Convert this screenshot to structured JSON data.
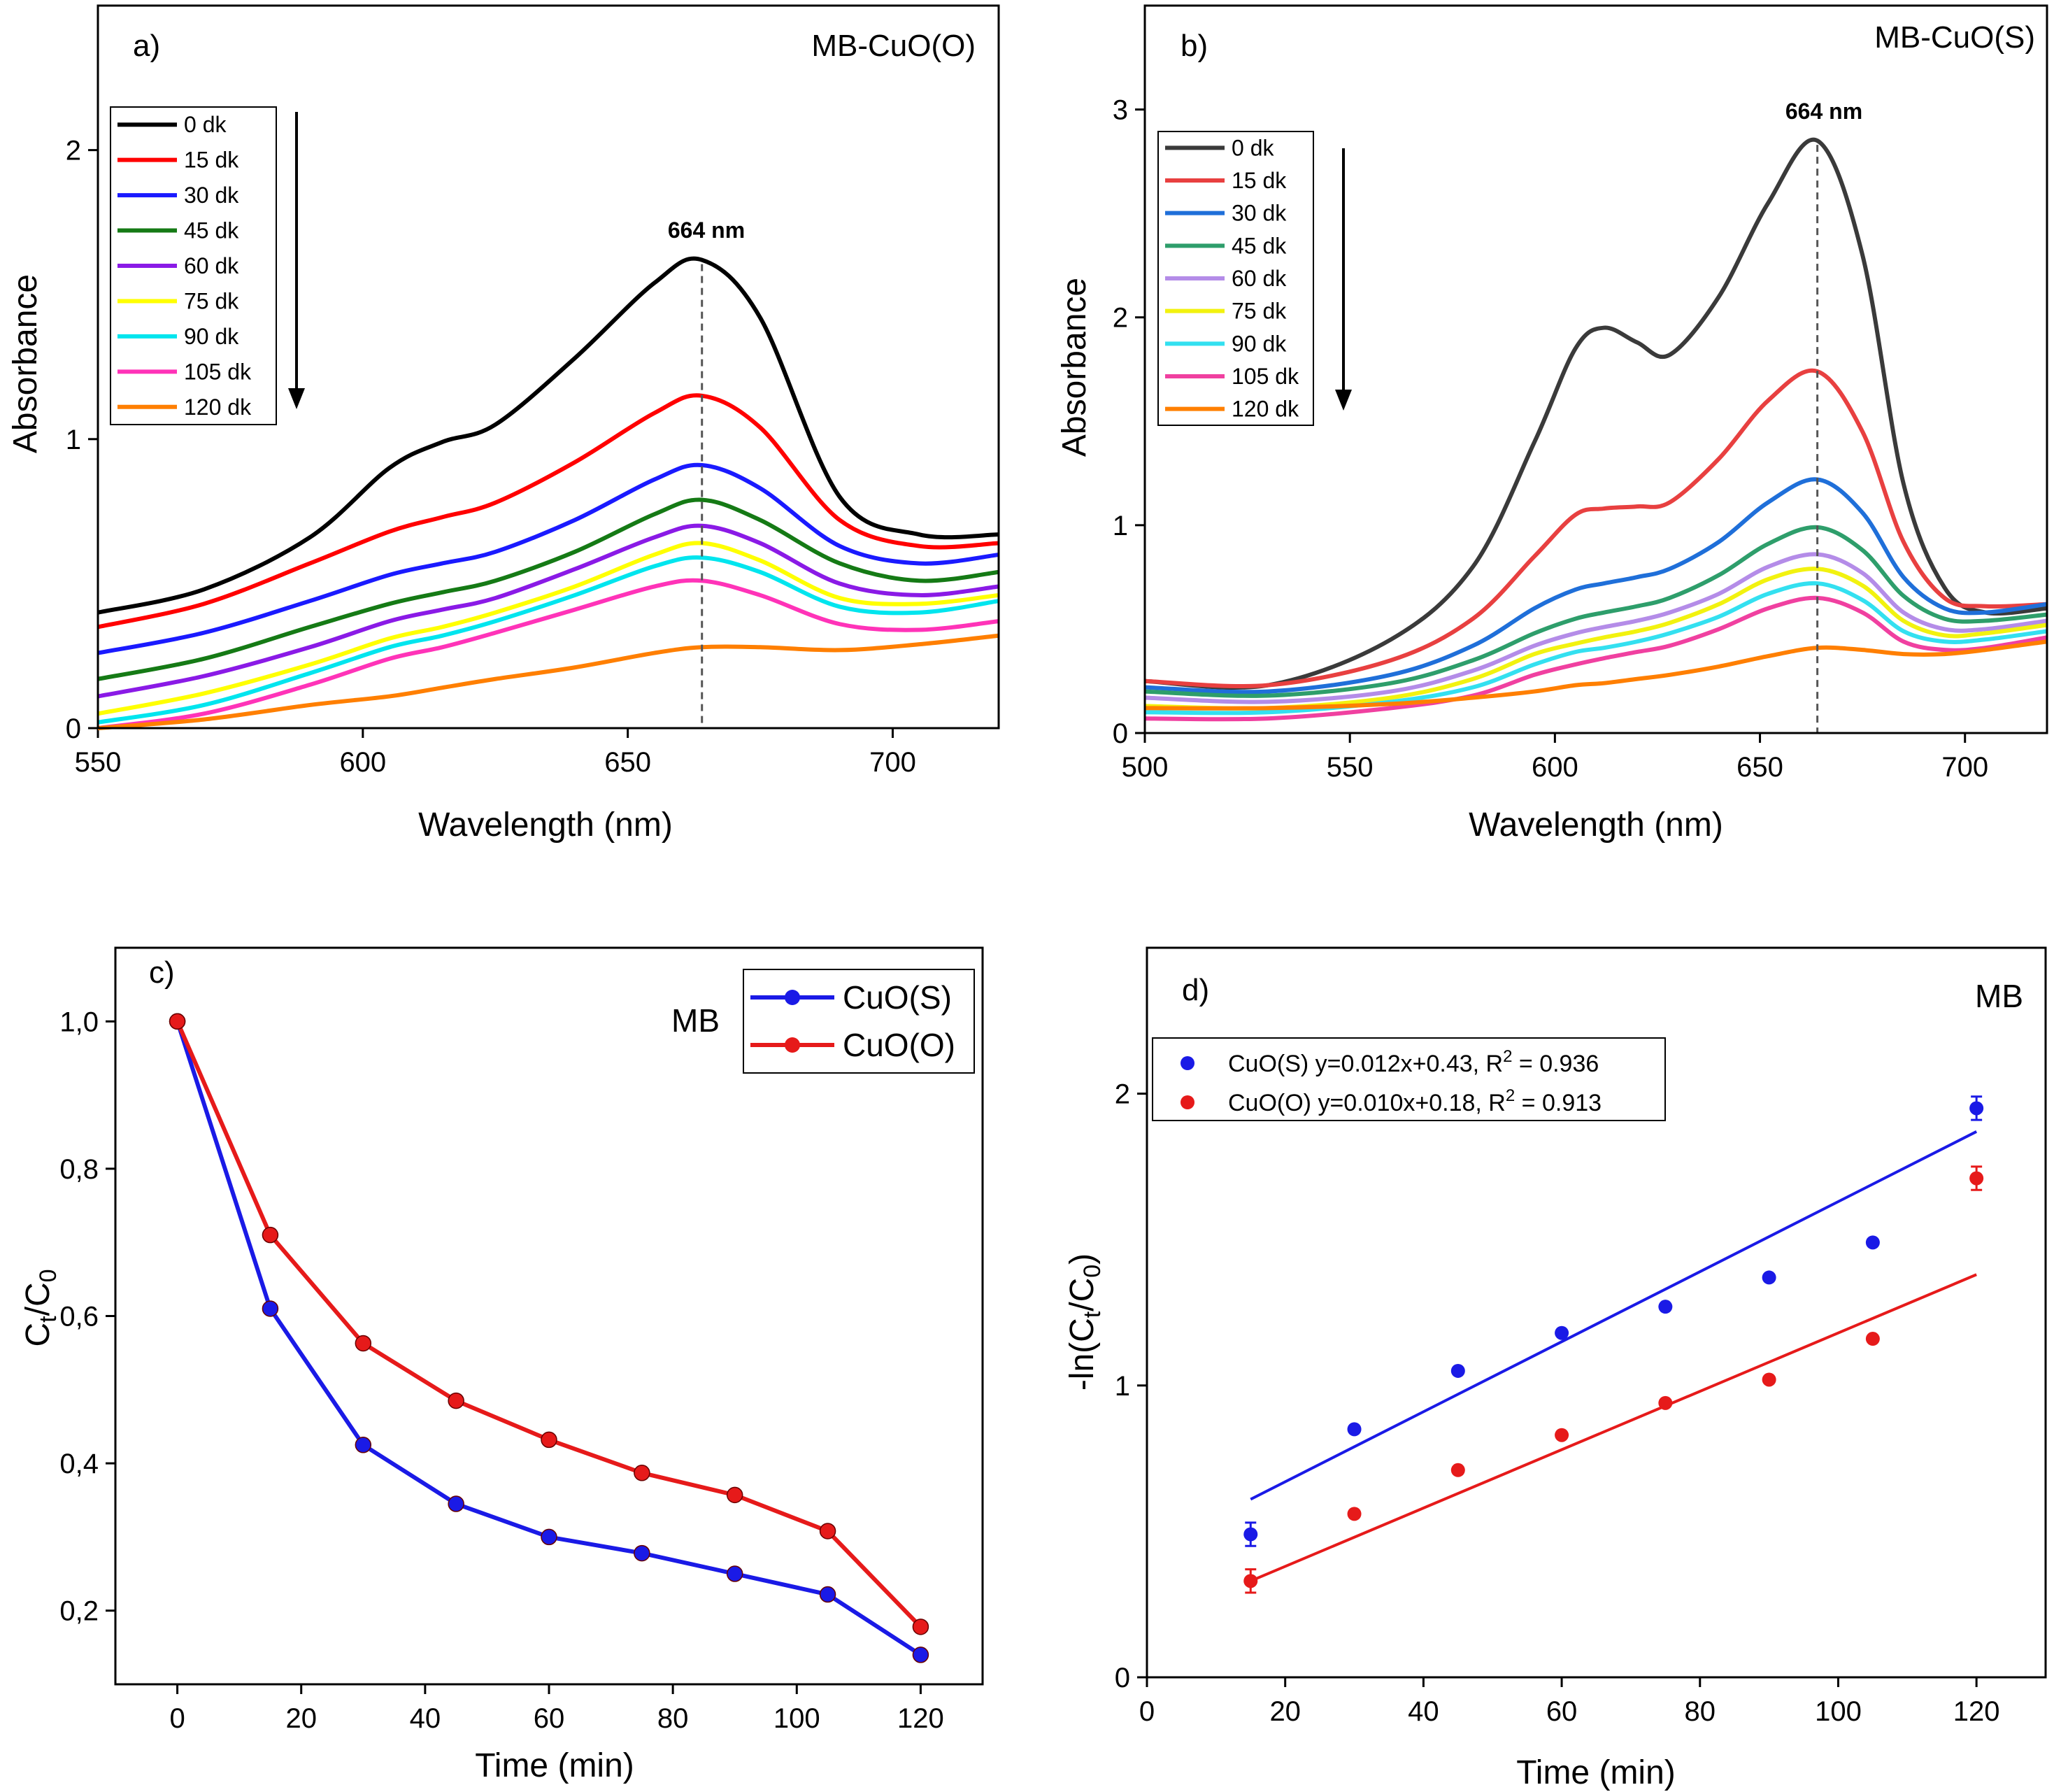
{
  "chart_data": [
    {
      "type": "line",
      "panel_label": "a)",
      "sample_label": "MB-CuO(O)",
      "xlabel": "Wavelength (nm)",
      "ylabel": "Absorbance",
      "xlim": [
        550,
        720
      ],
      "ylim": [
        0,
        2.5
      ],
      "xticks": [
        "550",
        "600",
        "650",
        "700"
      ],
      "yticks": [
        "0",
        "1",
        "2"
      ],
      "xtick_values": [
        550,
        600,
        650,
        700
      ],
      "ytick_values": [
        0,
        1,
        2
      ],
      "peak_label": "664 nm",
      "peak_x": 664,
      "legend_position": "top-left",
      "x": [
        550,
        570,
        590,
        605,
        615,
        625,
        640,
        655,
        664,
        675,
        690,
        705,
        720
      ],
      "series": [
        {
          "name": "0 dk",
          "color": "#000000",
          "values": [
            0.4,
            0.48,
            0.66,
            0.9,
            0.99,
            1.05,
            1.28,
            1.54,
            1.62,
            1.42,
            0.8,
            0.67,
            0.67
          ]
        },
        {
          "name": "15 dk",
          "color": "#ff0000",
          "values": [
            0.35,
            0.43,
            0.57,
            0.68,
            0.73,
            0.78,
            0.92,
            1.09,
            1.15,
            1.04,
            0.72,
            0.63,
            0.64
          ]
        },
        {
          "name": "30 dk",
          "color": "#1a1aff",
          "values": [
            0.26,
            0.33,
            0.44,
            0.53,
            0.57,
            0.61,
            0.72,
            0.86,
            0.91,
            0.83,
            0.63,
            0.57,
            0.6
          ]
        },
        {
          "name": "45 dk",
          "color": "#157a15",
          "values": [
            0.17,
            0.24,
            0.35,
            0.43,
            0.47,
            0.51,
            0.61,
            0.74,
            0.79,
            0.72,
            0.57,
            0.51,
            0.54
          ]
        },
        {
          "name": "60 dk",
          "color": "#8a1ae6",
          "values": [
            0.11,
            0.18,
            0.28,
            0.37,
            0.41,
            0.45,
            0.55,
            0.66,
            0.7,
            0.64,
            0.5,
            0.46,
            0.49
          ]
        },
        {
          "name": "75 dk",
          "color": "#ffff00",
          "values": [
            0.05,
            0.12,
            0.22,
            0.31,
            0.35,
            0.4,
            0.49,
            0.6,
            0.64,
            0.58,
            0.45,
            0.43,
            0.46
          ]
        },
        {
          "name": "90 dk",
          "color": "#00e5ee",
          "values": [
            0.02,
            0.08,
            0.19,
            0.28,
            0.32,
            0.37,
            0.46,
            0.56,
            0.59,
            0.54,
            0.42,
            0.4,
            0.44
          ]
        },
        {
          "name": "105 dk",
          "color": "#ff33b8",
          "values": [
            0.0,
            0.05,
            0.15,
            0.24,
            0.28,
            0.33,
            0.41,
            0.49,
            0.51,
            0.46,
            0.36,
            0.34,
            0.37
          ]
        },
        {
          "name": "120 dk",
          "color": "#ff7f00",
          "values": [
            0.0,
            0.03,
            0.08,
            0.11,
            0.14,
            0.17,
            0.21,
            0.26,
            0.28,
            0.28,
            0.27,
            0.29,
            0.32
          ]
        }
      ]
    },
    {
      "type": "line",
      "panel_label": "b)",
      "sample_label": "MB-CuO(S)",
      "xlabel": "Wavelength (nm)",
      "ylabel": "Absorbance",
      "xlim": [
        500,
        720
      ],
      "ylim": [
        0,
        3.5
      ],
      "xticks": [
        "500",
        "550",
        "600",
        "650",
        "700"
      ],
      "yticks": [
        "0",
        "1",
        "2",
        "3"
      ],
      "xtick_values": [
        500,
        550,
        600,
        650,
        700
      ],
      "ytick_values": [
        0,
        1,
        2,
        3
      ],
      "peak_label": "664 nm",
      "peak_x": 664,
      "legend_position": "top-left",
      "x": [
        500,
        530,
        560,
        580,
        595,
        605,
        612,
        620,
        628,
        640,
        652,
        664,
        675,
        685,
        695,
        705,
        720
      ],
      "series": [
        {
          "name": "0 dk",
          "color": "#3a3a3a",
          "values": [
            0.25,
            0.23,
            0.45,
            0.8,
            1.4,
            1.85,
            1.95,
            1.88,
            1.82,
            2.1,
            2.55,
            2.85,
            2.3,
            1.2,
            0.7,
            0.58,
            0.6
          ]
        },
        {
          "name": "15 dk",
          "color": "#e84040",
          "values": [
            0.25,
            0.23,
            0.35,
            0.55,
            0.85,
            1.05,
            1.08,
            1.09,
            1.11,
            1.32,
            1.6,
            1.74,
            1.45,
            0.92,
            0.65,
            0.61,
            0.62
          ]
        },
        {
          "name": "30 dk",
          "color": "#1f6fd9",
          "values": [
            0.22,
            0.2,
            0.28,
            0.42,
            0.6,
            0.69,
            0.72,
            0.75,
            0.79,
            0.92,
            1.11,
            1.22,
            1.06,
            0.75,
            0.6,
            0.58,
            0.62
          ]
        },
        {
          "name": "45 dk",
          "color": "#2e9e6b",
          "values": [
            0.2,
            0.18,
            0.24,
            0.35,
            0.48,
            0.55,
            0.58,
            0.61,
            0.65,
            0.76,
            0.91,
            0.99,
            0.88,
            0.66,
            0.55,
            0.54,
            0.57
          ]
        },
        {
          "name": "60 dk",
          "color": "#b48ce8",
          "values": [
            0.17,
            0.15,
            0.2,
            0.3,
            0.42,
            0.48,
            0.51,
            0.54,
            0.58,
            0.67,
            0.8,
            0.86,
            0.77,
            0.58,
            0.5,
            0.5,
            0.54
          ]
        },
        {
          "name": "75 dk",
          "color": "#f2f20f",
          "values": [
            0.13,
            0.12,
            0.17,
            0.26,
            0.38,
            0.43,
            0.46,
            0.49,
            0.53,
            0.62,
            0.74,
            0.79,
            0.71,
            0.54,
            0.47,
            0.48,
            0.52
          ]
        },
        {
          "name": "90 dk",
          "color": "#33e0f0",
          "values": [
            0.1,
            0.1,
            0.15,
            0.22,
            0.33,
            0.39,
            0.41,
            0.44,
            0.48,
            0.56,
            0.67,
            0.72,
            0.64,
            0.49,
            0.44,
            0.45,
            0.49
          ]
        },
        {
          "name": "105 dk",
          "color": "#f040a0",
          "values": [
            0.07,
            0.07,
            0.12,
            0.18,
            0.28,
            0.33,
            0.36,
            0.39,
            0.42,
            0.5,
            0.6,
            0.65,
            0.58,
            0.44,
            0.4,
            0.41,
            0.46
          ]
        },
        {
          "name": "120 dk",
          "color": "#ff7f00",
          "values": [
            0.12,
            0.12,
            0.14,
            0.17,
            0.2,
            0.23,
            0.24,
            0.26,
            0.28,
            0.32,
            0.37,
            0.41,
            0.4,
            0.38,
            0.38,
            0.4,
            0.44
          ]
        }
      ]
    },
    {
      "type": "line",
      "panel_label": "c)",
      "annotation": "MB",
      "xlabel": "Time (min)",
      "ylabel_main": "C",
      "ylabel_sub1": "t",
      "ylabel_mid": "/C",
      "ylabel_sub2": "0",
      "xlim": [
        -10,
        130
      ],
      "ylim": [
        0.1,
        1.1
      ],
      "xticks": [
        "0",
        "20",
        "40",
        "60",
        "80",
        "100",
        "120"
      ],
      "yticks": [
        "0,2",
        "0,4",
        "0,6",
        "0,8",
        "1,0"
      ],
      "xtick_values": [
        0,
        20,
        40,
        60,
        80,
        100,
        120
      ],
      "ytick_values": [
        0.2,
        0.4,
        0.6,
        0.8,
        1.0
      ],
      "legend_position": "top-right",
      "x": [
        0,
        15,
        30,
        45,
        60,
        75,
        90,
        105,
        120
      ],
      "series": [
        {
          "name": "CuO(S)",
          "color": "#1a1ae6",
          "values": [
            1.0,
            0.61,
            0.425,
            0.345,
            0.3,
            0.278,
            0.25,
            0.222,
            0.14
          ]
        },
        {
          "name": "CuO(O)",
          "color": "#e61a1a",
          "values": [
            1.0,
            0.71,
            0.563,
            0.485,
            0.432,
            0.387,
            0.357,
            0.308,
            0.178
          ]
        }
      ]
    },
    {
      "type": "scatter",
      "panel_label": "d)",
      "annotation": "MB",
      "xlabel": "Time (min)",
      "ylabel_pre": "-ln(C",
      "ylabel_sub1": "t",
      "ylabel_mid": "/C",
      "ylabel_sub2": "0",
      "ylabel_post": ")",
      "xlim": [
        0,
        130
      ],
      "ylim": [
        0,
        2.5
      ],
      "xticks": [
        "0",
        "20",
        "40",
        "60",
        "80",
        "100",
        "120"
      ],
      "yticks": [
        "0",
        "1",
        "2"
      ],
      "xtick_values": [
        0,
        20,
        40,
        60,
        80,
        100,
        120
      ],
      "ytick_values": [
        0,
        1,
        2
      ],
      "legend_position": "top-left",
      "x": [
        15,
        30,
        45,
        60,
        75,
        90,
        105,
        120
      ],
      "series": [
        {
          "name": "CuO(S)",
          "legend_eq": "y=0.012x+0.43, R",
          "legend_sup": "2",
          "legend_r": " = 0.936",
          "color": "#1a1ae6",
          "slope": 0.012,
          "intercept": 0.43,
          "values": [
            0.49,
            0.85,
            1.05,
            1.18,
            1.27,
            1.37,
            1.49,
            1.95
          ],
          "errors": [
            0.04,
            0,
            0,
            0,
            0,
            0,
            0,
            0.04
          ]
        },
        {
          "name": "CuO(O)",
          "legend_eq": "y=0.010x+0.18, R",
          "legend_sup": "2",
          "legend_r": " = 0.913",
          "color": "#e61a1a",
          "slope": 0.01,
          "intercept": 0.18,
          "values": [
            0.33,
            0.56,
            0.71,
            0.83,
            0.94,
            1.02,
            1.16,
            1.71
          ],
          "errors": [
            0.04,
            0,
            0,
            0,
            0,
            0,
            0,
            0.04
          ]
        }
      ]
    }
  ]
}
